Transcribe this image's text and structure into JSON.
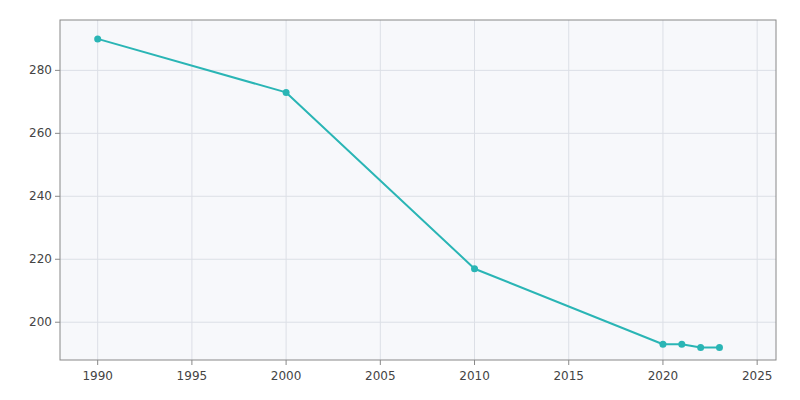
{
  "chart_data": {
    "type": "line",
    "x": [
      1990,
      2000,
      2010,
      2020,
      2021,
      2022,
      2023
    ],
    "values": [
      290,
      273,
      217,
      193,
      193,
      192,
      192
    ],
    "color": "#2ab5b5",
    "marker": "o",
    "xlim": [
      1988,
      2026
    ],
    "ylim": [
      188,
      296
    ],
    "xticks": [
      1990,
      1995,
      2000,
      2005,
      2010,
      2015,
      2020,
      2025
    ],
    "yticks": [
      200,
      220,
      240,
      260,
      280
    ],
    "grid": true
  }
}
